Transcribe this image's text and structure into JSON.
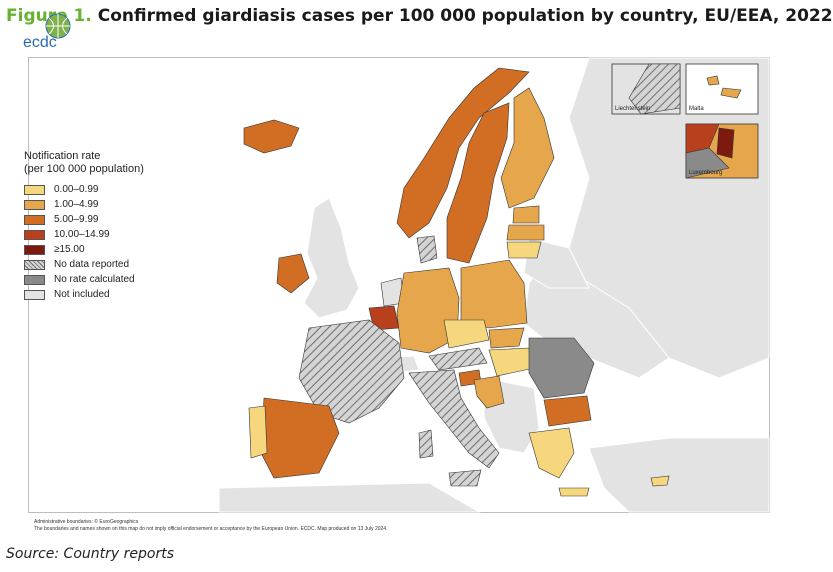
{
  "title": {
    "number": "Figure 1.",
    "text": "Confirmed giardiasis cases per 100 000 population by country, EU/EEA, 2022"
  },
  "logo": {
    "text": "ecdc"
  },
  "legend": {
    "title_line1": "Notification rate",
    "title_line2": "(per 100 000 population)",
    "items": [
      {
        "label": "0.00–0.99",
        "color": "#f6d77e"
      },
      {
        "label": "1.00–4.99",
        "color": "#e6a64b"
      },
      {
        "label": "5.00–9.99",
        "color": "#d26e24"
      },
      {
        "label": "10.00–14.99",
        "color": "#b9401d"
      },
      {
        "label": "≥15.00",
        "color": "#7d1a10"
      },
      {
        "label": "No data reported",
        "color": "hatched-light"
      },
      {
        "label": "No rate calculated",
        "color": "#8a8a8a"
      },
      {
        "label": "Not included",
        "color": "#e3e3e3"
      }
    ]
  },
  "insets": {
    "liechtenstein": "Liechtenstein",
    "malta": "Malta",
    "luxembourg": "Luxembourg"
  },
  "footnote": {
    "line1": "Administrative boundaries: © EuroGeographics",
    "line2": "The boundaries and names shown on this map do not imply official endorsement or acceptance by the European Union. ECDC. Map produced on 13 July 2024."
  },
  "source": "Source: Country reports"
}
